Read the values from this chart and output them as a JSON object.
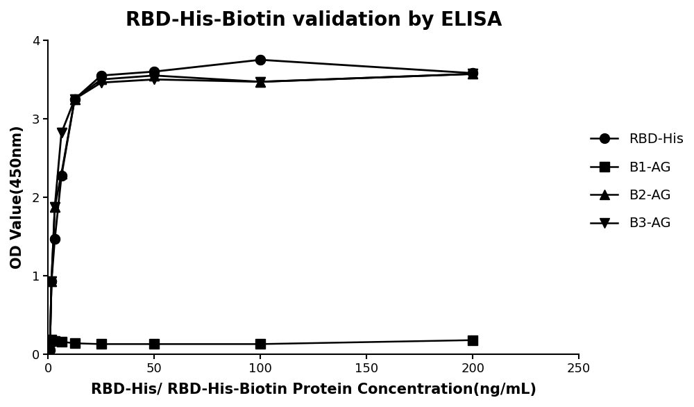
{
  "title": "RBD-His-Biotin validation by ELISA",
  "xlabel": "RBD-His/ RBD-His-Biotin Protein Concentration(ng/mL)",
  "ylabel": "OD Value(450nm)",
  "xlim": [
    0,
    250
  ],
  "ylim": [
    0,
    4
  ],
  "xticks": [
    0,
    50,
    100,
    150,
    200,
    250
  ],
  "yticks": [
    0,
    1,
    2,
    3,
    4
  ],
  "background_color": "#ffffff",
  "series": [
    {
      "label": "RBD-His",
      "marker": "o",
      "markersize": 10,
      "x": [
        0.78,
        1.56,
        3.125,
        6.25,
        12.5,
        25,
        50,
        100,
        200
      ],
      "y": [
        0.05,
        0.93,
        1.47,
        2.27,
        3.25,
        3.55,
        3.6,
        3.75,
        3.58
      ],
      "fit_curve": true,
      "color": "#000000",
      "linewidth": 2.0
    },
    {
      "label": "B1-AG",
      "marker": "s",
      "markersize": 10,
      "x": [
        0.78,
        1.56,
        3.125,
        6.25,
        12.5,
        25,
        50,
        100,
        200
      ],
      "y": [
        0.18,
        0.19,
        0.17,
        0.16,
        0.14,
        0.13,
        0.13,
        0.13,
        0.18
      ],
      "fit_curve": false,
      "color": "#000000",
      "linewidth": 1.8
    },
    {
      "label": "B2-AG",
      "marker": "^",
      "markersize": 10,
      "x": [
        0.78,
        1.56,
        3.125,
        6.25,
        12.5,
        25,
        50,
        100,
        200
      ],
      "y": [
        0.05,
        0.93,
        1.88,
        2.3,
        3.25,
        3.5,
        3.55,
        3.47,
        3.57
      ],
      "fit_curve": true,
      "color": "#000000",
      "linewidth": 2.0
    },
    {
      "label": "B3-AG",
      "marker": "v",
      "markersize": 10,
      "x": [
        0.78,
        1.56,
        3.125,
        6.25,
        12.5,
        25,
        50,
        100,
        200
      ],
      "y": [
        0.05,
        0.93,
        1.88,
        2.82,
        3.25,
        3.46,
        3.5,
        3.47,
        3.57
      ],
      "fit_curve": true,
      "color": "#000000",
      "linewidth": 2.0
    }
  ],
  "title_fontsize": 20,
  "label_fontsize": 15,
  "tick_fontsize": 13,
  "legend_fontsize": 14,
  "figure_width": 10.0,
  "figure_height": 5.86,
  "dpi": 100
}
